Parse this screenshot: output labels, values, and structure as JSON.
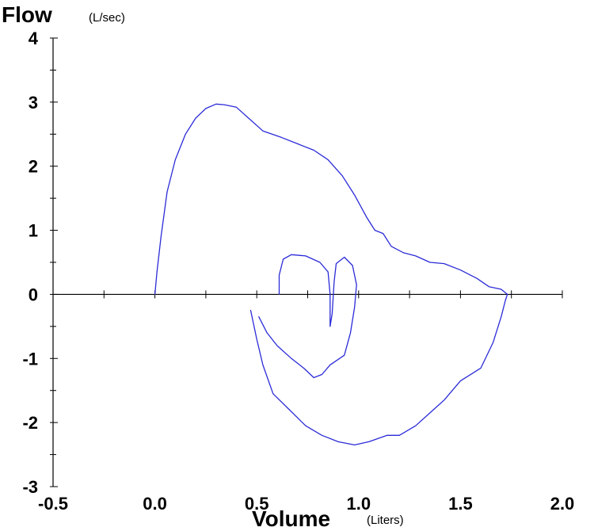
{
  "chart_data": {
    "type": "line",
    "ylabel": "Flow",
    "yunit": "(L/sec)",
    "xlabel": "Volume",
    "xunit": "(Liters)",
    "xlim": [
      -0.5,
      2.0
    ],
    "ylim": [
      -3,
      4
    ],
    "x_ticks": [
      "-0.5",
      "0.0",
      "0.5",
      "1.0",
      "1.5",
      "2.0"
    ],
    "y_ticks": [
      "4",
      "3",
      "2",
      "1",
      "0",
      "-1",
      "-2",
      "-3"
    ],
    "grid": false,
    "line_color": "#2b2bd8",
    "series": [
      {
        "points": [
          [
            0.0,
            0.0
          ],
          [
            0.01,
            0.35
          ],
          [
            0.03,
            0.9
          ],
          [
            0.06,
            1.6
          ],
          [
            0.1,
            2.1
          ],
          [
            0.15,
            2.5
          ],
          [
            0.2,
            2.75
          ],
          [
            0.25,
            2.9
          ],
          [
            0.3,
            2.97
          ],
          [
            0.34,
            2.96
          ],
          [
            0.4,
            2.92
          ],
          [
            0.46,
            2.75
          ],
          [
            0.53,
            2.55
          ],
          [
            0.62,
            2.45
          ],
          [
            0.7,
            2.35
          ],
          [
            0.78,
            2.25
          ],
          [
            0.85,
            2.1
          ],
          [
            0.92,
            1.85
          ],
          [
            0.98,
            1.55
          ],
          [
            1.04,
            1.2
          ],
          [
            1.08,
            1.0
          ],
          [
            1.12,
            0.95
          ],
          [
            1.16,
            0.75
          ],
          [
            1.22,
            0.65
          ],
          [
            1.28,
            0.6
          ],
          [
            1.35,
            0.5
          ],
          [
            1.42,
            0.48
          ],
          [
            1.5,
            0.38
          ],
          [
            1.58,
            0.25
          ],
          [
            1.64,
            0.12
          ],
          [
            1.7,
            0.08
          ],
          [
            1.73,
            0.0
          ],
          [
            1.72,
            -0.1
          ],
          [
            1.7,
            -0.35
          ],
          [
            1.66,
            -0.75
          ],
          [
            1.6,
            -1.15
          ],
          [
            1.5,
            -1.35
          ],
          [
            1.42,
            -1.65
          ],
          [
            1.35,
            -1.85
          ],
          [
            1.28,
            -2.05
          ],
          [
            1.2,
            -2.2
          ],
          [
            1.14,
            -2.2
          ],
          [
            1.05,
            -2.3
          ],
          [
            0.98,
            -2.35
          ],
          [
            0.9,
            -2.3
          ],
          [
            0.82,
            -2.2
          ],
          [
            0.74,
            -2.05
          ],
          [
            0.66,
            -1.8
          ],
          [
            0.58,
            -1.55
          ],
          [
            0.53,
            -1.1
          ],
          [
            0.5,
            -0.7
          ],
          [
            0.47,
            -0.25
          ]
        ]
      },
      {
        "points": [
          [
            0.51,
            -0.35
          ],
          [
            0.55,
            -0.6
          ],
          [
            0.6,
            -0.8
          ],
          [
            0.67,
            -1.0
          ],
          [
            0.73,
            -1.15
          ],
          [
            0.78,
            -1.3
          ],
          [
            0.82,
            -1.25
          ],
          [
            0.86,
            -1.1
          ],
          [
            0.93,
            -0.95
          ],
          [
            0.96,
            -0.6
          ],
          [
            0.98,
            -0.2
          ],
          [
            0.99,
            0.15
          ],
          [
            0.97,
            0.45
          ],
          [
            0.93,
            0.58
          ],
          [
            0.89,
            0.48
          ],
          [
            0.88,
            0.2
          ],
          [
            0.87,
            -0.3
          ],
          [
            0.86,
            -0.5
          ],
          [
            0.86,
            0.0
          ],
          [
            0.85,
            0.35
          ],
          [
            0.81,
            0.5
          ],
          [
            0.74,
            0.6
          ],
          [
            0.67,
            0.62
          ],
          [
            0.63,
            0.55
          ],
          [
            0.61,
            0.3
          ],
          [
            0.61,
            0.0
          ]
        ]
      }
    ]
  }
}
